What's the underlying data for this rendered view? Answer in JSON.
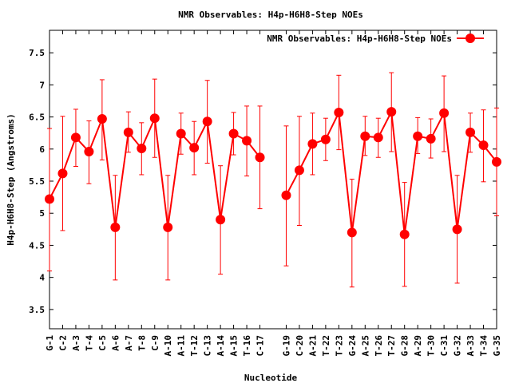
{
  "chart_data": {
    "type": "line",
    "title": "NMR Observables: H4p-H6H8-Step NOEs",
    "xlabel": "Nucleotide",
    "ylabel": "H4p-H6H8-Step (Angstroms)",
    "ylim": [
      3.2,
      7.85
    ],
    "yticks": [
      3.5,
      4,
      4.5,
      5,
      5.5,
      6,
      6.5,
      7,
      7.5
    ],
    "ytick_labels": [
      "3.5",
      "4",
      "4.5",
      "5",
      "5.5",
      "6",
      "6.5",
      "7",
      "7.5"
    ],
    "categories": [
      "G-1",
      "C-2",
      "A-3",
      "T-4",
      "C-5",
      "A-6",
      "A-7",
      "T-8",
      "C-9",
      "A-10",
      "A-11",
      "T-12",
      "C-13",
      "A-14",
      "A-15",
      "T-16",
      "C-17",
      "G-19",
      "C-20",
      "A-21",
      "T-22",
      "T-23",
      "G-24",
      "A-25",
      "T-26",
      "T-27",
      "G-28",
      "A-29",
      "T-30",
      "C-31",
      "G-32",
      "A-33",
      "T-34",
      "G-35"
    ],
    "x_positions": [
      1,
      2,
      3,
      4,
      5,
      6,
      7,
      8,
      9,
      10,
      11,
      12,
      13,
      14,
      15,
      16,
      17,
      19,
      20,
      21,
      22,
      23,
      24,
      25,
      26,
      27,
      28,
      29,
      30,
      31,
      32,
      33,
      34,
      35
    ],
    "xlim": [
      1,
      35
    ],
    "grid": false,
    "legend_position": "top-right",
    "series": [
      {
        "name": "NMR Observables: H4p-H6H8-Step NOEs",
        "color": "#ff0000",
        "segments": [
          [
            {
              "x": 1,
              "y": 5.22,
              "lo": 4.1,
              "hi": 6.32
            },
            {
              "x": 2,
              "y": 5.62,
              "lo": 4.73,
              "hi": 6.51
            },
            {
              "x": 3,
              "y": 6.18,
              "lo": 5.73,
              "hi": 6.62
            },
            {
              "x": 4,
              "y": 5.96,
              "lo": 5.46,
              "hi": 6.44
            },
            {
              "x": 5,
              "y": 6.47,
              "lo": 5.83,
              "hi": 7.08
            },
            {
              "x": 6,
              "y": 4.78,
              "lo": 3.96,
              "hi": 5.59
            },
            {
              "x": 7,
              "y": 6.26,
              "lo": 5.95,
              "hi": 6.58
            },
            {
              "x": 8,
              "y": 6.01,
              "lo": 5.6,
              "hi": 6.41
            },
            {
              "x": 9,
              "y": 6.48,
              "lo": 5.87,
              "hi": 7.09
            },
            {
              "x": 10,
              "y": 4.78,
              "lo": 3.96,
              "hi": 5.59
            },
            {
              "x": 11,
              "y": 6.24,
              "lo": 5.92,
              "hi": 6.56
            },
            {
              "x": 12,
              "y": 6.02,
              "lo": 5.6,
              "hi": 6.43
            },
            {
              "x": 13,
              "y": 6.43,
              "lo": 5.78,
              "hi": 7.07
            },
            {
              "x": 14,
              "y": 4.9,
              "lo": 4.05,
              "hi": 5.74
            },
            {
              "x": 15,
              "y": 6.24,
              "lo": 5.91,
              "hi": 6.57
            },
            {
              "x": 16,
              "y": 6.13,
              "lo": 5.58,
              "hi": 6.67
            },
            {
              "x": 17,
              "y": 5.87,
              "lo": 5.07,
              "hi": 6.67
            }
          ],
          [
            {
              "x": 19,
              "y": 5.28,
              "lo": 4.18,
              "hi": 6.36
            },
            {
              "x": 20,
              "y": 5.67,
              "lo": 4.81,
              "hi": 6.51
            },
            {
              "x": 21,
              "y": 6.08,
              "lo": 5.6,
              "hi": 6.56
            },
            {
              "x": 22,
              "y": 6.15,
              "lo": 5.82,
              "hi": 6.48
            },
            {
              "x": 23,
              "y": 6.57,
              "lo": 5.99,
              "hi": 7.15
            },
            {
              "x": 24,
              "y": 4.7,
              "lo": 3.85,
              "hi": 5.53
            },
            {
              "x": 25,
              "y": 6.2,
              "lo": 5.9,
              "hi": 6.51
            },
            {
              "x": 26,
              "y": 6.18,
              "lo": 5.87,
              "hi": 6.48
            },
            {
              "x": 27,
              "y": 6.58,
              "lo": 5.96,
              "hi": 7.19
            },
            {
              "x": 28,
              "y": 4.67,
              "lo": 3.86,
              "hi": 5.48
            },
            {
              "x": 29,
              "y": 6.2,
              "lo": 5.93,
              "hi": 6.49
            },
            {
              "x": 30,
              "y": 6.16,
              "lo": 5.86,
              "hi": 6.47
            },
            {
              "x": 31,
              "y": 6.56,
              "lo": 5.96,
              "hi": 7.14
            },
            {
              "x": 32,
              "y": 4.75,
              "lo": 3.91,
              "hi": 5.59
            },
            {
              "x": 33,
              "y": 6.26,
              "lo": 5.95,
              "hi": 6.56
            },
            {
              "x": 34,
              "y": 6.06,
              "lo": 5.49,
              "hi": 6.61
            },
            {
              "x": 35,
              "y": 5.8,
              "lo": 4.96,
              "hi": 6.64
            }
          ]
        ]
      }
    ]
  }
}
